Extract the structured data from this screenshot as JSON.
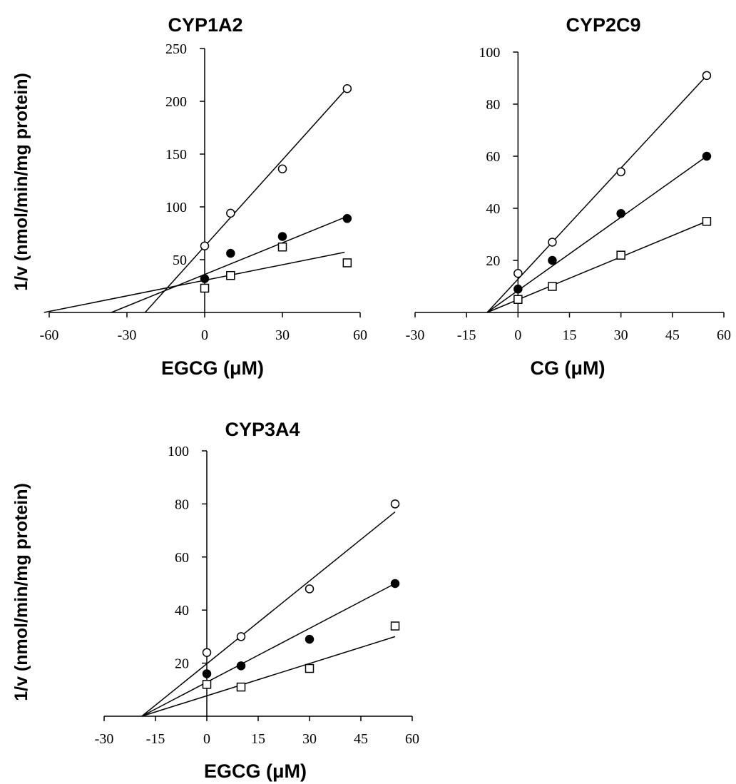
{
  "chart_data": [
    {
      "type": "scatter",
      "title": "CYP1A2",
      "xlabel": "EGCG (μM)",
      "ylabel": "1/v (nmol/min/mg protein)",
      "xlim": [
        -60,
        60
      ],
      "ylim": [
        0,
        250
      ],
      "xticks": [
        -60,
        -30,
        0,
        30,
        60
      ],
      "yticks": [
        50,
        100,
        150,
        200,
        250
      ],
      "series": [
        {
          "marker": "open-circle",
          "x": [
            0,
            10,
            30,
            55
          ],
          "y": [
            63,
            94,
            136,
            212
          ],
          "fit": [
            [
              -23,
              0
            ],
            [
              54,
              210
            ]
          ]
        },
        {
          "marker": "filled-circle",
          "x": [
            0,
            10,
            30,
            55
          ],
          "y": [
            32,
            56,
            72,
            89
          ],
          "fit": [
            [
              -36,
              0
            ],
            [
              54,
              90
            ]
          ]
        },
        {
          "marker": "open-square",
          "x": [
            0,
            10,
            30,
            55
          ],
          "y": [
            23,
            35,
            62,
            47
          ],
          "fit": [
            [
              -62,
              0
            ],
            [
              54,
              57
            ]
          ]
        }
      ]
    },
    {
      "type": "scatter",
      "title": "CYP2C9",
      "xlabel": "CG (μM)",
      "ylabel": "",
      "xlim": [
        -30,
        60
      ],
      "ylim": [
        0,
        100
      ],
      "xticks": [
        -30,
        -15,
        0,
        15,
        30,
        45,
        60
      ],
      "yticks": [
        20,
        40,
        60,
        80,
        100
      ],
      "series": [
        {
          "marker": "open-circle",
          "x": [
            0,
            10,
            30,
            55
          ],
          "y": [
            15,
            27,
            54,
            91
          ],
          "fit": [
            [
              -9,
              0
            ],
            [
              55,
              91
            ]
          ]
        },
        {
          "marker": "filled-circle",
          "x": [
            0,
            10,
            30,
            55
          ],
          "y": [
            9,
            20,
            38,
            60
          ],
          "fit": [
            [
              -9,
              0
            ],
            [
              55,
              60
            ]
          ]
        },
        {
          "marker": "open-square",
          "x": [
            0,
            10,
            30,
            55
          ],
          "y": [
            5,
            10,
            22,
            35
          ],
          "fit": [
            [
              -9,
              0
            ],
            [
              55,
              35
            ]
          ]
        }
      ]
    },
    {
      "type": "scatter",
      "title": "CYP3A4",
      "xlabel": "EGCG (μM)",
      "ylabel": "1/v (nmol/min/mg protein)",
      "xlim": [
        -30,
        60
      ],
      "ylim": [
        0,
        100
      ],
      "xticks": [
        -30,
        -15,
        0,
        15,
        30,
        45,
        60
      ],
      "yticks": [
        20,
        40,
        60,
        80,
        100
      ],
      "series": [
        {
          "marker": "open-circle",
          "x": [
            0,
            10,
            30,
            55
          ],
          "y": [
            24,
            30,
            48,
            80
          ],
          "fit": [
            [
              -19,
              0
            ],
            [
              55,
              77
            ]
          ]
        },
        {
          "marker": "filled-circle",
          "x": [
            0,
            10,
            30,
            55
          ],
          "y": [
            16,
            19,
            29,
            50
          ],
          "fit": [
            [
              -19,
              0
            ],
            [
              55,
              50
            ]
          ]
        },
        {
          "marker": "open-square",
          "x": [
            0,
            10,
            30,
            55
          ],
          "y": [
            12,
            11,
            18,
            34
          ],
          "fit": [
            [
              -19,
              0
            ],
            [
              55,
              30
            ]
          ]
        }
      ]
    }
  ]
}
